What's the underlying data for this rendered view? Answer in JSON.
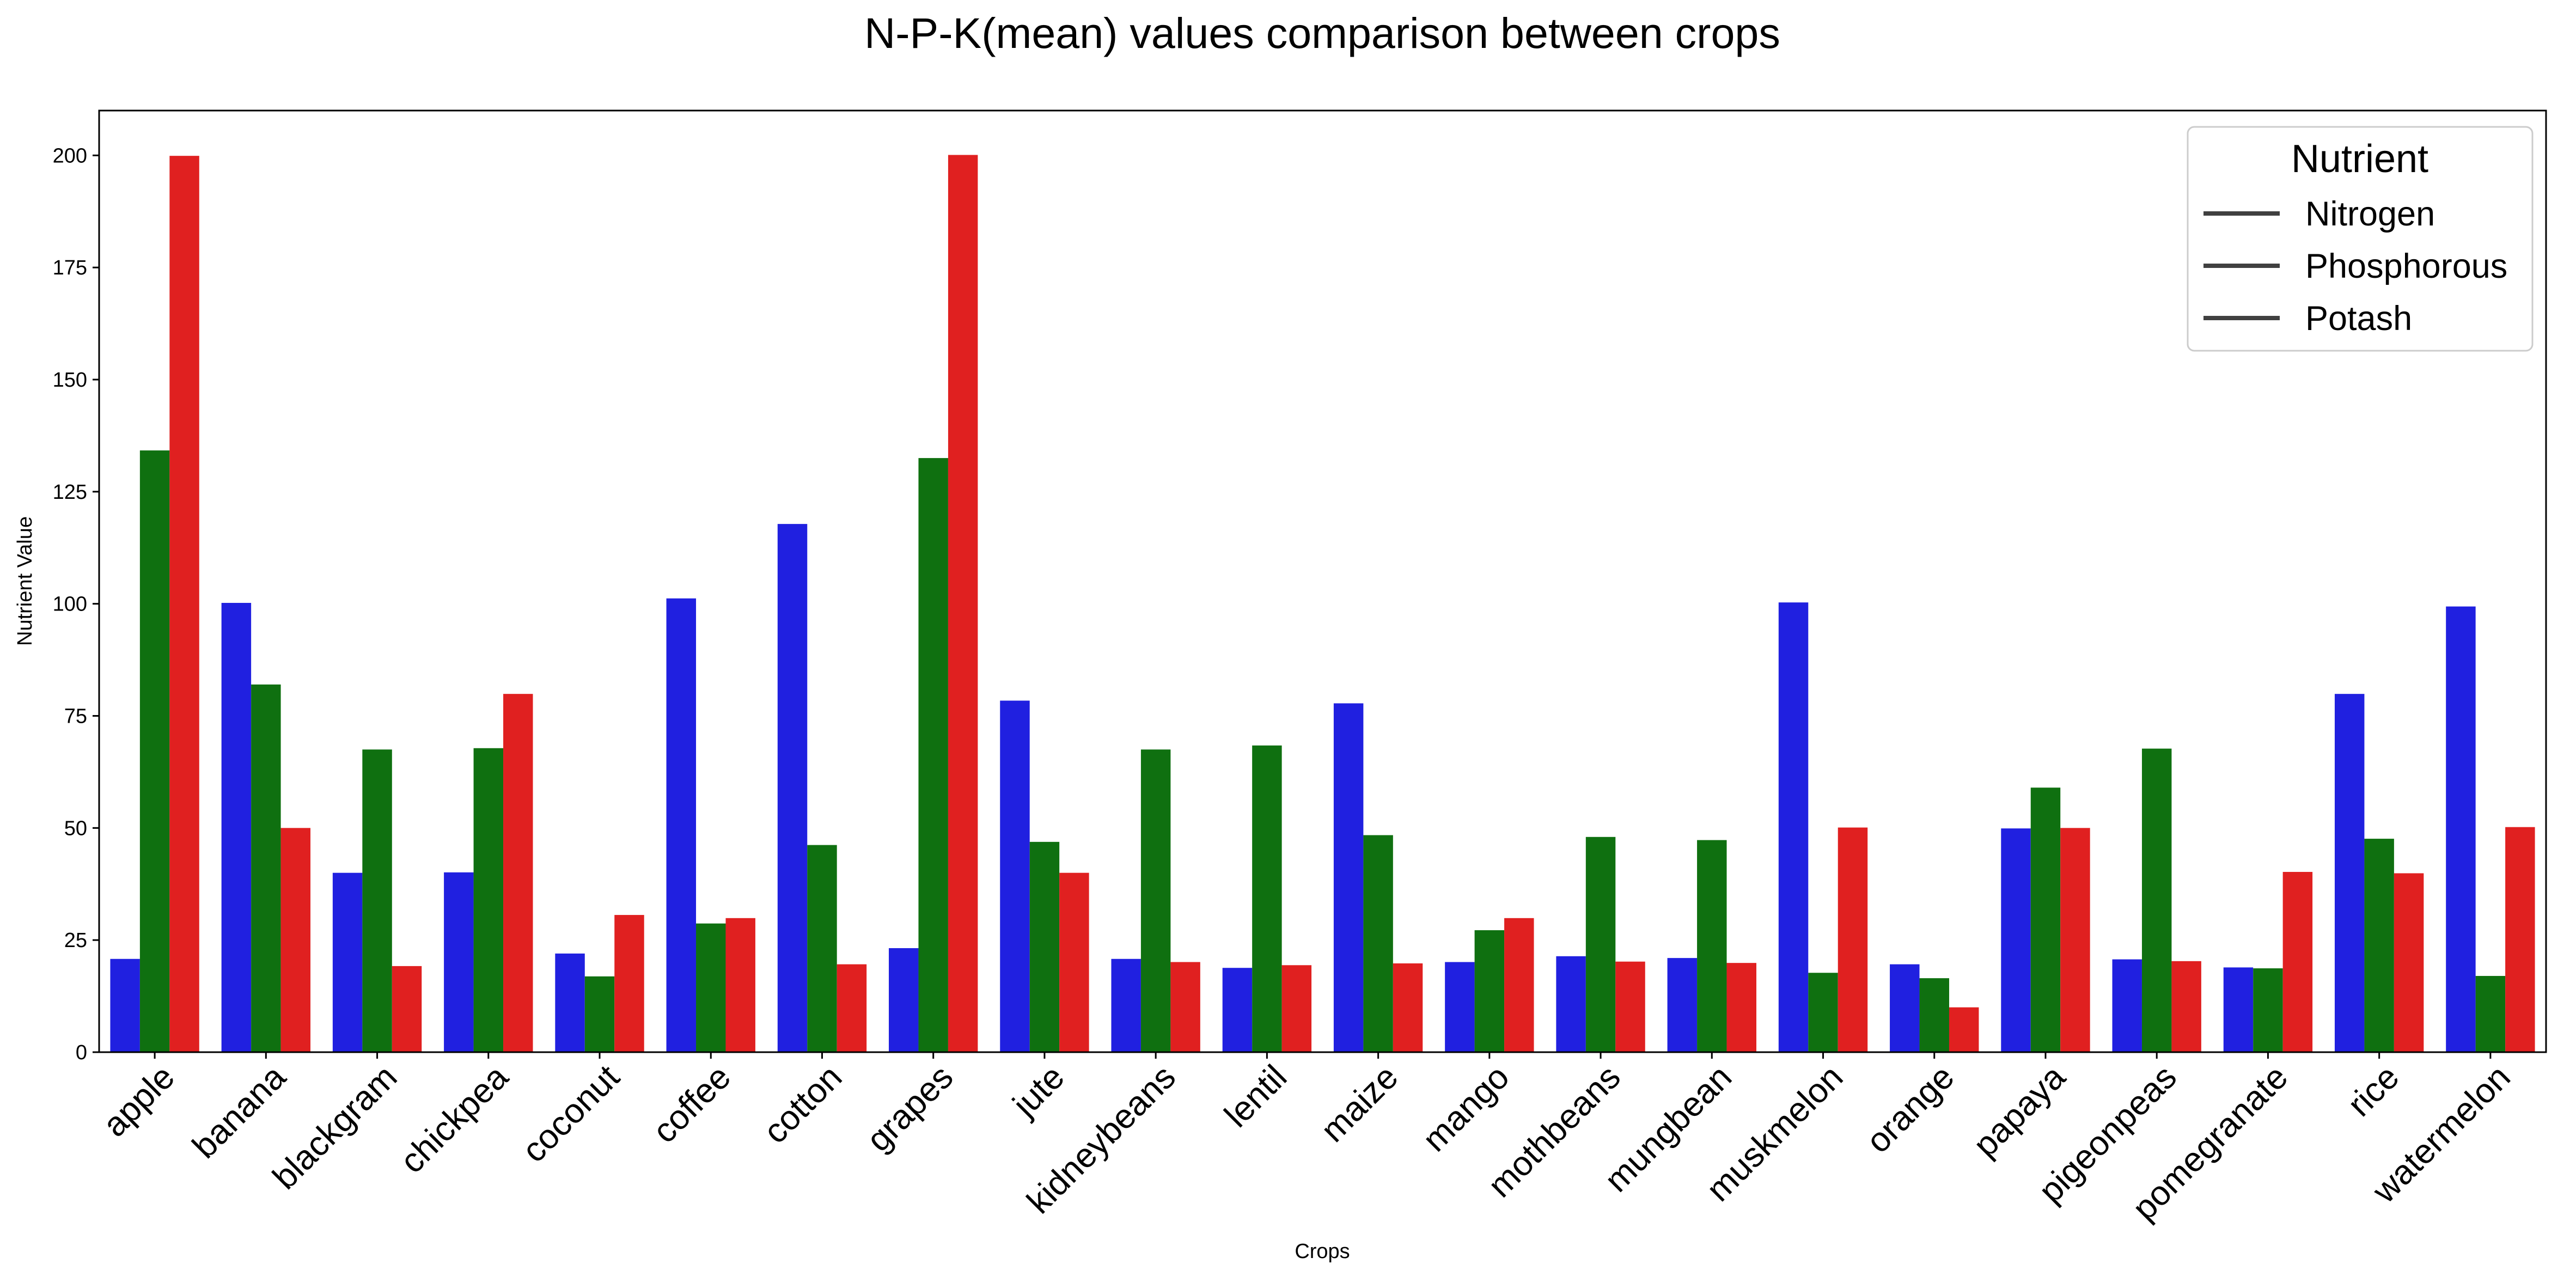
{
  "chart_data": {
    "type": "bar",
    "title": "N-P-K(mean) values comparison between crops",
    "xlabel": "Crops",
    "ylabel": "Nutrient Value",
    "ylim": [
      0,
      210
    ],
    "yticks": [
      0,
      25,
      50,
      75,
      100,
      125,
      150,
      175,
      200
    ],
    "grid": false,
    "categories": [
      "apple",
      "banana",
      "blackgram",
      "chickpea",
      "coconut",
      "coffee",
      "cotton",
      "grapes",
      "jute",
      "kidneybeans",
      "lentil",
      "maize",
      "mango",
      "mothbeans",
      "mungbean",
      "muskmelon",
      "orange",
      "papaya",
      "pigeonpeas",
      "pomegranate",
      "rice",
      "watermelon"
    ],
    "series": [
      {
        "name": "Nitrogen",
        "color": "#2020e0",
        "values": [
          20.8,
          100.2,
          40.0,
          40.1,
          22.0,
          101.2,
          117.8,
          23.2,
          78.4,
          20.8,
          18.8,
          77.8,
          20.1,
          21.4,
          21.0,
          100.3,
          19.6,
          49.9,
          20.7,
          18.9,
          79.9,
          99.4
        ]
      },
      {
        "name": "Phosphorous",
        "color": "#0f7010",
        "values": [
          134.2,
          82.0,
          67.5,
          67.8,
          16.9,
          28.7,
          46.2,
          132.5,
          46.9,
          67.5,
          68.4,
          48.4,
          27.2,
          48.0,
          47.3,
          17.7,
          16.5,
          59.0,
          67.7,
          18.7,
          47.6,
          17.0
        ]
      },
      {
        "name": "Potash",
        "color": "#e02020",
        "values": [
          199.9,
          50.0,
          19.2,
          79.9,
          30.6,
          29.9,
          19.6,
          200.1,
          40.0,
          20.1,
          19.4,
          19.8,
          29.9,
          20.2,
          19.9,
          50.1,
          10.0,
          50.0,
          20.3,
          40.2,
          39.9,
          50.2
        ]
      }
    ],
    "legend": {
      "title": "Nutrient",
      "position": "top-right"
    }
  }
}
